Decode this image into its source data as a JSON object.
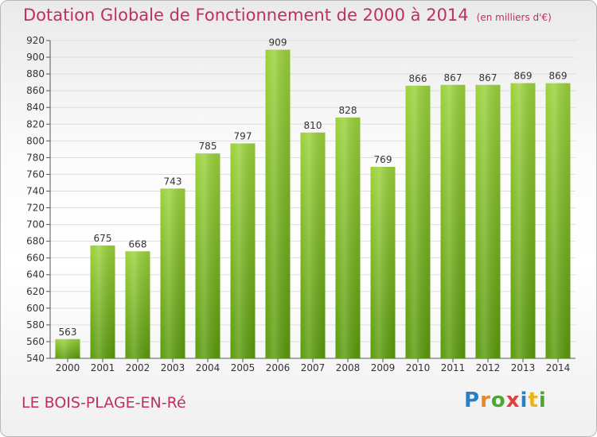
{
  "chart_data": {
    "type": "bar",
    "title": "Dotation Globale de Fonctionnement de 2000 à 2014",
    "subtitle": "(en milliers d'€)",
    "categories": [
      "2000",
      "2001",
      "2002",
      "2003",
      "2004",
      "2005",
      "2006",
      "2007",
      "2008",
      "2009",
      "2010",
      "2011",
      "2012",
      "2013",
      "2014"
    ],
    "values": [
      563,
      675,
      668,
      743,
      785,
      797,
      909,
      810,
      828,
      769,
      866,
      867,
      867,
      869,
      869
    ],
    "ylim": [
      540,
      920
    ],
    "yticks": [
      540,
      560,
      580,
      600,
      620,
      640,
      660,
      680,
      700,
      720,
      740,
      760,
      780,
      800,
      820,
      840,
      860,
      880,
      900,
      920
    ],
    "grid": true,
    "bar_color_top": "#9bd23a",
    "bar_color_bottom": "#5a9a0c"
  },
  "footer": {
    "commune": "LE BOIS-PLAGE-EN-Ré",
    "logo_text": "Proxiti",
    "logo_colors": [
      "#2b7fc4",
      "#e8862a",
      "#4aa832",
      "#e04040",
      "#2b7fc4",
      "#e8b520",
      "#4aa832"
    ]
  },
  "colors": {
    "title": "#c0305a",
    "axis_text": "#333333",
    "grid": "#dddddd"
  }
}
